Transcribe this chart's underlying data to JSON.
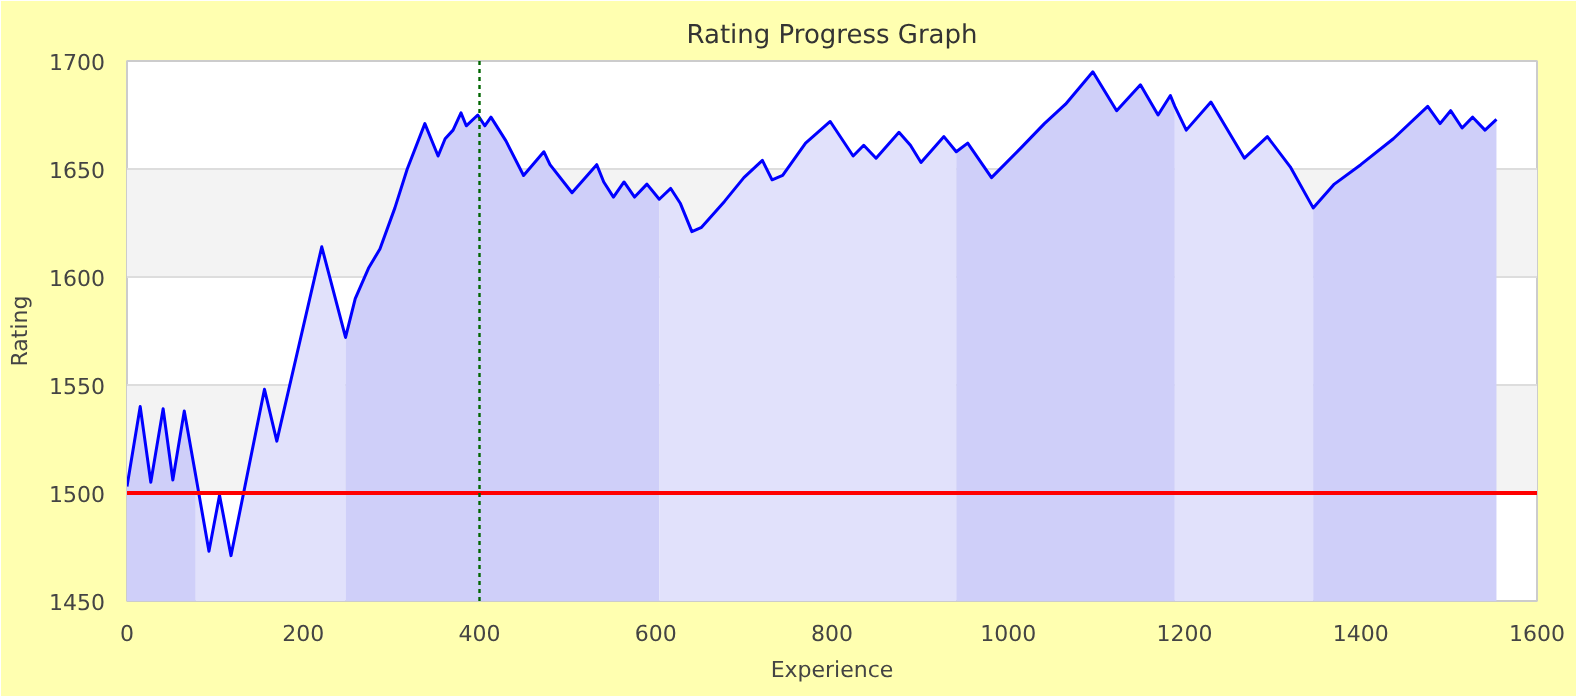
{
  "chart_data": {
    "type": "line",
    "title": "Rating Progress Graph",
    "xlabel": "Experience",
    "ylabel": "Rating",
    "xlim": [
      0,
      1600
    ],
    "xticks": [
      0,
      200,
      400,
      600,
      800,
      1000,
      1200,
      1400,
      1600
    ],
    "ylim": [
      1450,
      1700
    ],
    "yticks": [
      1450,
      1500,
      1550,
      1600,
      1650,
      1700
    ],
    "grid": "y",
    "marker": "none",
    "line_style": "solid",
    "series": [
      {
        "type": "area",
        "color": "#cfcff9",
        "x": [
          0,
          15,
          27,
          41,
          52,
          65,
          78
        ],
        "values": [
          1503,
          1540,
          1505,
          1539,
          1506,
          1538,
          1508
        ]
      },
      {
        "type": "area",
        "color": "#e1e1fb",
        "x": [
          78,
          93,
          105,
          118,
          156,
          170,
          221,
          248
        ],
        "values": [
          1508,
          1473,
          1499,
          1471,
          1548,
          1524,
          1614,
          1572
        ]
      },
      {
        "type": "area",
        "color": "#cfcff9",
        "x": [
          248,
          259,
          274,
          287,
          304,
          318,
          338,
          353,
          361,
          370,
          379,
          385,
          398,
          406,
          413,
          430,
          450,
          473,
          480,
          505,
          533,
          541,
          552,
          564,
          576,
          590,
          604
        ],
        "values": [
          1572,
          1590,
          1604,
          1613,
          1632,
          1650,
          1671,
          1656,
          1664,
          1668,
          1676,
          1670,
          1675,
          1670,
          1674,
          1663,
          1647,
          1658,
          1652,
          1639,
          1652,
          1644,
          1637,
          1644,
          1637,
          1643,
          1636
        ]
      },
      {
        "type": "area",
        "color": "#e1e1fb",
        "x": [
          604,
          617,
          628,
          641,
          652,
          678,
          700,
          721,
          732,
          744,
          770,
          798,
          824,
          836,
          850,
          876,
          889,
          901,
          927,
          941
        ],
        "values": [
          1636,
          1641,
          1634,
          1621,
          1623,
          1635,
          1646,
          1654,
          1645,
          1647,
          1662,
          1672,
          1656,
          1661,
          1655,
          1667,
          1661,
          1653,
          1665,
          1658
        ]
      },
      {
        "type": "area",
        "color": "#cfcff9",
        "x": [
          941,
          954,
          981,
          1015,
          1041,
          1065,
          1096,
          1123,
          1150,
          1170,
          1184,
          1189
        ],
        "values": [
          1658,
          1662,
          1646,
          1660,
          1671,
          1680,
          1695,
          1677,
          1689,
          1675,
          1684,
          1679
        ]
      },
      {
        "type": "area",
        "color": "#e1e1fb",
        "x": [
          1189,
          1202,
          1230,
          1268,
          1294,
          1320,
          1346
        ],
        "values": [
          1679,
          1668,
          1681,
          1655,
          1665,
          1651,
          1632
        ]
      },
      {
        "type": "area",
        "color": "#cfcff9",
        "x": [
          1346,
          1370,
          1400,
          1437,
          1476,
          1490,
          1502,
          1515,
          1527,
          1541,
          1554
        ],
        "values": [
          1632,
          1643,
          1652,
          1664,
          1679,
          1671,
          1677,
          1669,
          1674,
          1668,
          1673
        ]
      },
      {
        "color": "#0000ff",
        "x": [
          0,
          15,
          27,
          41,
          52,
          65,
          78,
          93,
          105,
          118,
          156,
          170,
          221,
          248,
          259,
          274,
          287,
          304,
          318,
          338,
          353,
          361,
          370,
          379,
          385,
          398,
          406,
          413,
          430,
          450,
          473,
          480,
          505,
          533,
          541,
          552,
          564,
          576,
          590,
          604,
          617,
          628,
          641,
          652,
          678,
          700,
          721,
          732,
          744,
          770,
          798,
          824,
          836,
          850,
          876,
          889,
          901,
          927,
          941,
          954,
          981,
          1015,
          1041,
          1065,
          1096,
          1123,
          1150,
          1170,
          1184,
          1189,
          1202,
          1230,
          1268,
          1294,
          1320,
          1346,
          1370,
          1400,
          1437,
          1476,
          1490,
          1502,
          1515,
          1527,
          1541,
          1554
        ],
        "values": [
          1503,
          1540,
          1505,
          1539,
          1506,
          1538,
          1508,
          1473,
          1499,
          1471,
          1548,
          1524,
          1614,
          1572,
          1590,
          1604,
          1613,
          1632,
          1650,
          1671,
          1656,
          1664,
          1668,
          1676,
          1670,
          1675,
          1670,
          1674,
          1663,
          1647,
          1658,
          1652,
          1639,
          1652,
          1644,
          1637,
          1644,
          1637,
          1643,
          1636,
          1641,
          1634,
          1621,
          1623,
          1635,
          1646,
          1654,
          1645,
          1647,
          1662,
          1672,
          1656,
          1661,
          1655,
          1667,
          1661,
          1653,
          1665,
          1658,
          1662,
          1646,
          1660,
          1671,
          1680,
          1695,
          1677,
          1689,
          1675,
          1684,
          1679,
          1668,
          1681,
          1655,
          1665,
          1651,
          1632,
          1643,
          1652,
          1664,
          1679,
          1671,
          1677,
          1669,
          1674,
          1668,
          1673
        ]
      }
    ],
    "ref_lines": [
      {
        "axis": "y",
        "value": 1500,
        "color": "#ff0000",
        "line_style": "solid"
      },
      {
        "axis": "x",
        "value": 400,
        "color": "#006600",
        "line_style": "dotted"
      }
    ]
  }
}
